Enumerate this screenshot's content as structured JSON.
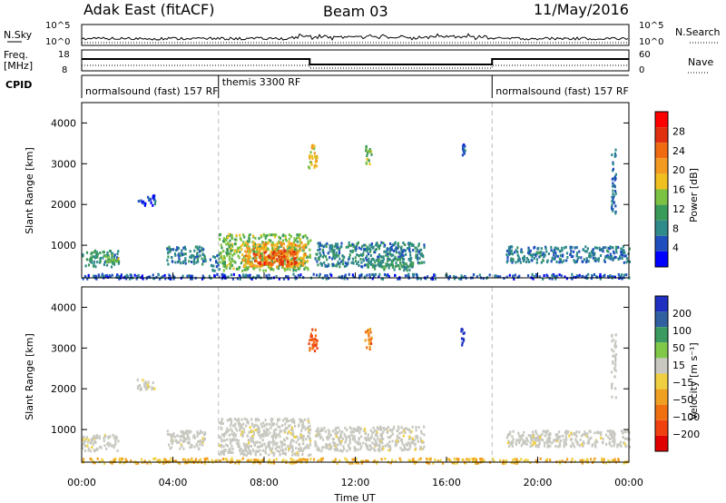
{
  "header": {
    "radar": "Adak East (fitACF)",
    "beam": "Beam 03",
    "date": "11/May/2016"
  },
  "top_panels": {
    "nsky_label": "N.Sky",
    "nsky_ticks": [
      "10^5",
      "10^0"
    ],
    "nsearch_label": "N.Search",
    "nsearch_ticks": [
      "10^5",
      "10^0"
    ],
    "freq_label_1": "Freq.",
    "freq_label_2": "[MHz]",
    "freq_ticks": [
      "18",
      "8"
    ],
    "nave_label": "Nave",
    "nave_ticks": [
      "60",
      "0"
    ],
    "cpid_label": "CPID",
    "modes": [
      {
        "label": "normalsound (fast) 157 RF",
        "start_hour": 0
      },
      {
        "label": "themis 3300 RF",
        "start_hour": 6
      },
      {
        "label": "normalsound (fast) 157 RF",
        "start_hour": 18
      }
    ]
  },
  "x_axis": {
    "label": "Time UT",
    "ticks": [
      "00:00",
      "04:00",
      "08:00",
      "12:00",
      "16:00",
      "20:00",
      "00:00"
    ]
  },
  "panels": {
    "power": {
      "ylabel": "Slant Range [km]",
      "yticks": [
        "4000",
        "3000",
        "2000",
        "1000"
      ],
      "cbar_label": "Power [dB]",
      "cbar_ticks": [
        "28",
        "24",
        "20",
        "16",
        "12",
        "8",
        "4"
      ]
    },
    "velocity": {
      "ylabel": "Slant Range [km]",
      "yticks": [
        "4000",
        "3000",
        "2000",
        "1000"
      ],
      "cbar_label": "Velocity [m s⁻¹]",
      "cbar_ticks": [
        "200",
        "100",
        "50",
        "15",
        "−15",
        "−50",
        "−100",
        "−200"
      ]
    }
  },
  "colors": {
    "power_scale": [
      "#0000ff",
      "#1f4fbf",
      "#2f8a8a",
      "#3a9a5a",
      "#7bc142",
      "#f0c020",
      "#f39a20",
      "#f06a10",
      "#e03010",
      "#ff0000"
    ],
    "velocity_scale": [
      "#2030c0",
      "#3060a0",
      "#3a9a60",
      "#80c848",
      "#c8c8c0",
      "#f0d040",
      "#f0a020",
      "#f07010",
      "#f04010",
      "#e00000"
    ],
    "grid_dash": "#bbbbbb"
  },
  "chart_data": [
    {
      "type": "heatmap",
      "title": "Power",
      "x": {
        "unit": "hour UT",
        "range": [
          0,
          24
        ]
      },
      "y": {
        "unit": "km",
        "range": [
          200,
          4500
        ]
      },
      "value_range": [
        0,
        32
      ],
      "regions": [
        {
          "t0": 0.0,
          "t1": 1.6,
          "r0": 500,
          "r1": 900,
          "level": 9
        },
        {
          "t0": 1.0,
          "t1": 1.6,
          "r0": 600,
          "r1": 800,
          "level": 14
        },
        {
          "t0": 3.7,
          "t1": 5.4,
          "r0": 550,
          "r1": 1000,
          "level": 8
        },
        {
          "t0": 5.6,
          "t1": 6.0,
          "r0": 400,
          "r1": 800,
          "level": 6
        },
        {
          "t0": 6.0,
          "t1": 10.0,
          "r0": 400,
          "r1": 1300,
          "level": 14
        },
        {
          "t0": 7.0,
          "t1": 9.8,
          "r0": 500,
          "r1": 1100,
          "level": 20
        },
        {
          "t0": 7.5,
          "t1": 9.4,
          "r0": 550,
          "r1": 900,
          "level": 26
        },
        {
          "t0": 10.2,
          "t1": 15.0,
          "r0": 500,
          "r1": 1100,
          "level": 8
        },
        {
          "t0": 12.5,
          "t1": 14.5,
          "r0": 400,
          "r1": 700,
          "level": 10
        },
        {
          "t0": 18.6,
          "t1": 24.0,
          "r0": 600,
          "r1": 1000,
          "level": 7
        },
        {
          "t0": 0.0,
          "t1": 24.0,
          "r0": 200,
          "r1": 320,
          "level": 5
        },
        {
          "t0": 2.4,
          "t1": 3.2,
          "r0": 2000,
          "r1": 2250,
          "level": 5
        },
        {
          "t0": 9.9,
          "t1": 10.3,
          "r0": 2900,
          "r1": 3500,
          "level": 18
        },
        {
          "t0": 12.4,
          "t1": 12.7,
          "r0": 3000,
          "r1": 3500,
          "level": 14
        },
        {
          "t0": 16.6,
          "t1": 16.8,
          "r0": 3100,
          "r1": 3500,
          "level": 5
        },
        {
          "t0": 23.2,
          "t1": 23.4,
          "r0": 1800,
          "r1": 3400,
          "level": 6
        }
      ]
    },
    {
      "type": "heatmap",
      "title": "Velocity",
      "x": {
        "unit": "hour UT",
        "range": [
          0,
          24
        ]
      },
      "y": {
        "unit": "km",
        "range": [
          200,
          4500
        ]
      },
      "value_range": [
        -200,
        200
      ],
      "regions": [
        {
          "t0": 0.0,
          "t1": 1.6,
          "r0": 500,
          "r1": 900,
          "value": 0
        },
        {
          "t0": 3.7,
          "t1": 5.4,
          "r0": 550,
          "r1": 1000,
          "value": 0
        },
        {
          "t0": 6.0,
          "t1": 10.0,
          "r0": 400,
          "r1": 1300,
          "value": 0
        },
        {
          "t0": 10.2,
          "t1": 15.0,
          "r0": 500,
          "r1": 1100,
          "value": 0
        },
        {
          "t0": 18.6,
          "t1": 24.0,
          "r0": 600,
          "r1": 1000,
          "value": 0
        },
        {
          "t0": 0.0,
          "t1": 24.0,
          "r0": 200,
          "r1": 320,
          "value": -40
        },
        {
          "t0": 2.4,
          "t1": 3.2,
          "r0": 2000,
          "r1": 2250,
          "value": 0
        },
        {
          "t0": 9.9,
          "t1": 10.3,
          "r0": 2900,
          "r1": 3500,
          "value": -120
        },
        {
          "t0": 12.4,
          "t1": 12.7,
          "r0": 3000,
          "r1": 3500,
          "value": -90
        },
        {
          "t0": 16.6,
          "t1": 16.8,
          "r0": 3100,
          "r1": 3500,
          "value": 220
        },
        {
          "t0": 23.2,
          "t1": 23.4,
          "r0": 1800,
          "r1": 3400,
          "value": 0
        }
      ]
    }
  ]
}
